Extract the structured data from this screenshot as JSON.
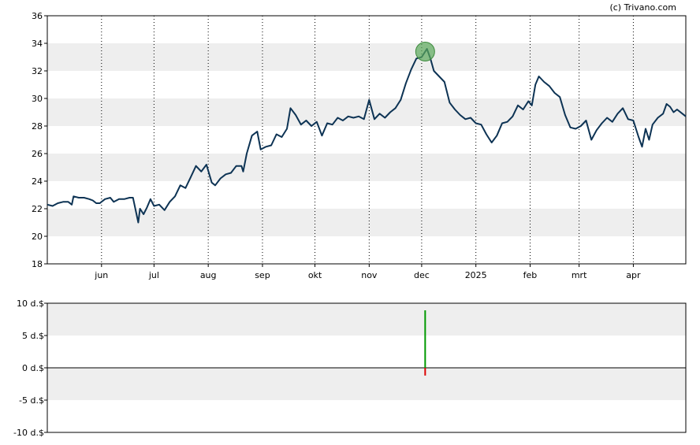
{
  "credit": "(c) Trivano.com",
  "colors": {
    "band": "#eeeeee",
    "price_line": "#0d3354",
    "marker_fill": "#5aa85a",
    "bar_positive": "#009900",
    "bar_negative": "#dd0000",
    "axis": "#000000",
    "grid": "#000000"
  },
  "chart_data": [
    {
      "type": "line",
      "name": "price-panel",
      "ylim": [
        18,
        36
      ],
      "yticks": [
        18,
        20,
        22,
        24,
        26,
        28,
        30,
        32,
        34,
        36
      ],
      "xlim": [
        0,
        365
      ],
      "month_labels": [
        {
          "label": "jun",
          "x": 31
        },
        {
          "label": "jul",
          "x": 61
        },
        {
          "label": "aug",
          "x": 92
        },
        {
          "label": "sep",
          "x": 123
        },
        {
          "label": "okt",
          "x": 153
        },
        {
          "label": "nov",
          "x": 184
        },
        {
          "label": "dec",
          "x": 214
        },
        {
          "label": "2025",
          "x": 245
        },
        {
          "label": "feb",
          "x": 276
        },
        {
          "label": "mrt",
          "x": 304
        },
        {
          "label": "apr",
          "x": 335
        }
      ],
      "grid": "vertical dotted at month starts, horizontal alternating bands",
      "series": [
        {
          "points": [
            [
              0,
              22.3
            ],
            [
              3,
              22.2
            ],
            [
              6,
              22.4
            ],
            [
              9,
              22.5
            ],
            [
              12,
              22.5
            ],
            [
              14,
              22.3
            ],
            [
              15,
              22.9
            ],
            [
              18,
              22.8
            ],
            [
              21,
              22.8
            ],
            [
              24,
              22.7
            ],
            [
              26,
              22.6
            ],
            [
              28,
              22.4
            ],
            [
              30,
              22.4
            ],
            [
              33,
              22.7
            ],
            [
              36,
              22.8
            ],
            [
              38,
              22.5
            ],
            [
              41,
              22.7
            ],
            [
              44,
              22.7
            ],
            [
              47,
              22.8
            ],
            [
              49,
              22.8
            ],
            [
              52,
              21.0
            ],
            [
              53,
              22.0
            ],
            [
              55,
              21.6
            ],
            [
              57,
              22.1
            ],
            [
              59,
              22.7
            ],
            [
              61,
              22.2
            ],
            [
              64,
              22.3
            ],
            [
              67,
              21.9
            ],
            [
              70,
              22.5
            ],
            [
              73,
              22.9
            ],
            [
              76,
              23.7
            ],
            [
              79,
              23.5
            ],
            [
              82,
              24.3
            ],
            [
              85,
              25.1
            ],
            [
              88,
              24.7
            ],
            [
              91,
              25.2
            ],
            [
              94,
              23.9
            ],
            [
              96,
              23.7
            ],
            [
              99,
              24.2
            ],
            [
              102,
              24.5
            ],
            [
              105,
              24.6
            ],
            [
              108,
              25.1
            ],
            [
              111,
              25.1
            ],
            [
              112,
              24.7
            ],
            [
              114,
              26.0
            ],
            [
              117,
              27.3
            ],
            [
              120,
              27.6
            ],
            [
              122,
              26.3
            ],
            [
              125,
              26.5
            ],
            [
              128,
              26.6
            ],
            [
              131,
              27.4
            ],
            [
              134,
              27.2
            ],
            [
              137,
              27.8
            ],
            [
              139,
              29.3
            ],
            [
              142,
              28.8
            ],
            [
              145,
              28.1
            ],
            [
              148,
              28.4
            ],
            [
              151,
              28.0
            ],
            [
              154,
              28.3
            ],
            [
              157,
              27.3
            ],
            [
              160,
              28.2
            ],
            [
              163,
              28.1
            ],
            [
              166,
              28.6
            ],
            [
              169,
              28.4
            ],
            [
              172,
              28.7
            ],
            [
              175,
              28.6
            ],
            [
              178,
              28.7
            ],
            [
              181,
              28.5
            ],
            [
              184,
              29.9
            ],
            [
              187,
              28.5
            ],
            [
              190,
              28.9
            ],
            [
              193,
              28.6
            ],
            [
              196,
              29.0
            ],
            [
              199,
              29.3
            ],
            [
              202,
              29.9
            ],
            [
              205,
              31.1
            ],
            [
              208,
              32.1
            ],
            [
              211,
              32.9
            ],
            [
              214,
              33.0
            ],
            [
              217,
              33.6
            ],
            [
              219,
              32.9
            ],
            [
              221,
              32.0
            ],
            [
              224,
              31.6
            ],
            [
              227,
              31.2
            ],
            [
              230,
              29.7
            ],
            [
              233,
              29.2
            ],
            [
              236,
              28.8
            ],
            [
              239,
              28.5
            ],
            [
              242,
              28.6
            ],
            [
              245,
              28.2
            ],
            [
              248,
              28.1
            ],
            [
              251,
              27.4
            ],
            [
              254,
              26.8
            ],
            [
              257,
              27.3
            ],
            [
              260,
              28.2
            ],
            [
              263,
              28.3
            ],
            [
              266,
              28.7
            ],
            [
              269,
              29.5
            ],
            [
              272,
              29.2
            ],
            [
              275,
              29.8
            ],
            [
              277,
              29.5
            ],
            [
              279,
              31.0
            ],
            [
              281,
              31.6
            ],
            [
              284,
              31.2
            ],
            [
              287,
              30.9
            ],
            [
              290,
              30.4
            ],
            [
              293,
              30.1
            ],
            [
              296,
              28.8
            ],
            [
              299,
              27.9
            ],
            [
              302,
              27.8
            ],
            [
              305,
              28.0
            ],
            [
              308,
              28.4
            ],
            [
              311,
              27.0
            ],
            [
              314,
              27.7
            ],
            [
              317,
              28.2
            ],
            [
              320,
              28.6
            ],
            [
              323,
              28.3
            ],
            [
              326,
              28.9
            ],
            [
              329,
              29.3
            ],
            [
              332,
              28.5
            ],
            [
              335,
              28.4
            ],
            [
              338,
              27.2
            ],
            [
              340,
              26.5
            ],
            [
              342,
              27.8
            ],
            [
              344,
              27.0
            ],
            [
              346,
              28.1
            ],
            [
              349,
              28.6
            ],
            [
              352,
              28.9
            ],
            [
              354,
              29.6
            ],
            [
              356,
              29.4
            ],
            [
              358,
              29.0
            ],
            [
              360,
              29.2
            ],
            [
              363,
              28.9
            ],
            [
              365,
              28.7
            ]
          ]
        }
      ],
      "markers": [
        {
          "type": "dividend",
          "x": 216,
          "y": 33.4
        }
      ]
    },
    {
      "type": "bar",
      "name": "dividend-panel",
      "ylim": [
        -10,
        10
      ],
      "ytick_labels": [
        "10 d.$",
        "5 d.$",
        "0 d.$",
        "-5 d.$",
        "-10 d.$"
      ],
      "ytick_values": [
        10,
        5,
        0,
        -5,
        -10
      ],
      "xlim": [
        0,
        365
      ],
      "bars": [
        {
          "x": 216,
          "value": 8.9,
          "color": "#009900"
        },
        {
          "x": 216,
          "value": -1.2,
          "color": "#dd0000"
        }
      ]
    }
  ]
}
